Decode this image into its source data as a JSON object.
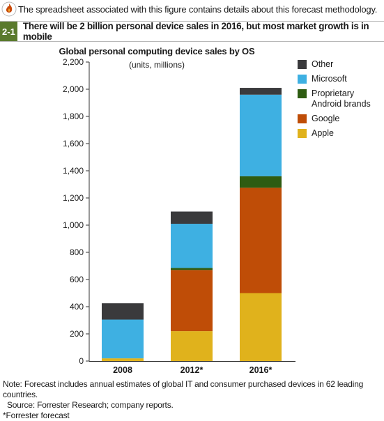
{
  "top_note": "The spreadsheet associated with this figure contains details about this forecast methodology.",
  "figure": {
    "number": "2-1",
    "title": "There will be 2 billion personal device sales in 2016, but most market growth is in mobile"
  },
  "chart_data": {
    "type": "bar",
    "stacked": true,
    "title": "Global personal computing device sales by OS",
    "subtitle": "(units, millions)",
    "categories": [
      "2008",
      "2012*",
      "2016*"
    ],
    "ylim": [
      0,
      2200
    ],
    "yticks": [
      "0",
      "200",
      "400",
      "600",
      "800",
      "1,000",
      "1,200",
      "1,400",
      "1,600",
      "1,800",
      "2,000",
      "2,200"
    ],
    "grid": false,
    "legend_position": "right",
    "series": [
      {
        "name": "Apple",
        "color": "#e0b21c",
        "values": [
          20,
          220,
          500
        ]
      },
      {
        "name": "Google",
        "color": "#bf4d07",
        "values": [
          0,
          450,
          775
        ]
      },
      {
        "name": "Proprietary Android brands",
        "color": "#2e5c12",
        "values": [
          0,
          15,
          85
        ]
      },
      {
        "name": "Microsoft",
        "color": "#3eb0e2",
        "values": [
          285,
          325,
          600
        ]
      },
      {
        "name": "Other",
        "color": "#3a3a3c",
        "values": [
          120,
          90,
          50
        ]
      }
    ],
    "legend_order": [
      "Other",
      "Microsoft",
      "Proprietary Android brands",
      "Google",
      "Apple"
    ]
  },
  "footer": {
    "note": "Note: Forecast includes annual estimates of global IT and consumer purchased devices in 62 leading countries.",
    "source": "Source: Forrester Research; company reports.",
    "forecast": "*Forrester forecast"
  },
  "icons": {
    "top_note": "spreadsheet-flame-icon"
  },
  "colors": {
    "figure_badge": "#5a7a2d"
  }
}
